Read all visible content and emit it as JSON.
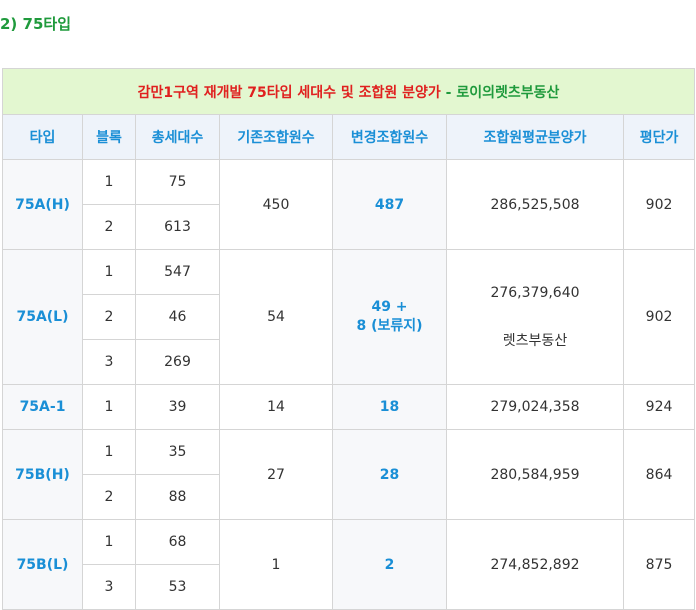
{
  "section_title": "2) 75타입",
  "caption": {
    "main": "감만1구역 재개발 75타입 세대수 및 조합원 분양가",
    "dash": " - ",
    "agency": "로이의렛츠부동산"
  },
  "headers": [
    "타입",
    "블록",
    "총세대수",
    "기존조합원수",
    "변경조합원수",
    "조합원평균분양가",
    "평단가"
  ],
  "groups": [
    {
      "type": "75A(H)",
      "rows": [
        {
          "block": "1",
          "units": "75"
        },
        {
          "block": "2",
          "units": "613"
        }
      ],
      "existing": "450",
      "changed": "487",
      "avg_price": "286,525,508",
      "avg_note": "",
      "per_pyeong": "902"
    },
    {
      "type": "75A(L)",
      "rows": [
        {
          "block": "1",
          "units": "547"
        },
        {
          "block": "2",
          "units": "46"
        },
        {
          "block": "3",
          "units": "269"
        }
      ],
      "existing": "54",
      "changed": "49 +",
      "changed_line2": "8 (보류지)",
      "avg_price": "276,379,640",
      "avg_note": "렛츠부동산",
      "per_pyeong": "902"
    },
    {
      "type": "75A-1",
      "rows": [
        {
          "block": "1",
          "units": "39"
        }
      ],
      "existing": "14",
      "changed": "18",
      "avg_price": "279,024,358",
      "avg_note": "",
      "per_pyeong": "924"
    },
    {
      "type": "75B(H)",
      "rows": [
        {
          "block": "1",
          "units": "35"
        },
        {
          "block": "2",
          "units": "88"
        }
      ],
      "existing": "27",
      "changed": "28",
      "avg_price": "280,584,959",
      "avg_note": "",
      "per_pyeong": "864"
    },
    {
      "type": "75B(L)",
      "rows": [
        {
          "block": "1",
          "units": "68"
        },
        {
          "block": "3",
          "units": "53"
        }
      ],
      "existing": "1",
      "changed": "2",
      "avg_price": "274,852,892",
      "avg_note": "",
      "per_pyeong": "875"
    }
  ]
}
